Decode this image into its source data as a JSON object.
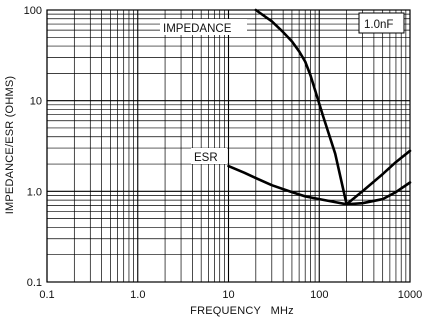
{
  "chart_data": {
    "type": "line",
    "x_scale": "log",
    "y_scale": "log",
    "xlim": [
      0.1,
      1000
    ],
    "ylim": [
      0.1,
      100
    ],
    "xlabel": "FREQUENCY   MHz",
    "ylabel": "IMPEDANCE/ESR (OHMS)",
    "x_tick_labels": [
      "0.1",
      "1.0",
      "10",
      "100",
      "1000"
    ],
    "y_tick_labels": [
      "0.1",
      "1.0",
      "10",
      "100"
    ],
    "grid": true,
    "series_labels": [
      "IMPEDANCE",
      "ESR",
      "1.0nF"
    ],
    "series": [
      {
        "name": "IMPEDANCE",
        "x": [
          20,
          30,
          40,
          50,
          60,
          70,
          80,
          90,
          100,
          110,
          120,
          150,
          200,
          300,
          500,
          700,
          1000
        ],
        "y": [
          100,
          75,
          57,
          45,
          35,
          27,
          19,
          13,
          9.2,
          6.8,
          5.2,
          2.6,
          0.72,
          1.0,
          1.55,
          2.1,
          2.8
        ]
      },
      {
        "name": "ESR",
        "x": [
          10,
          15,
          20,
          30,
          50,
          70,
          100,
          150,
          200,
          300,
          500,
          700,
          1000
        ],
        "y": [
          1.9,
          1.6,
          1.4,
          1.17,
          0.98,
          0.88,
          0.82,
          0.76,
          0.72,
          0.74,
          0.82,
          0.98,
          1.25
        ]
      }
    ]
  },
  "colors": {
    "line": "#000000",
    "grid": "#000000",
    "background": "#ffffff"
  }
}
